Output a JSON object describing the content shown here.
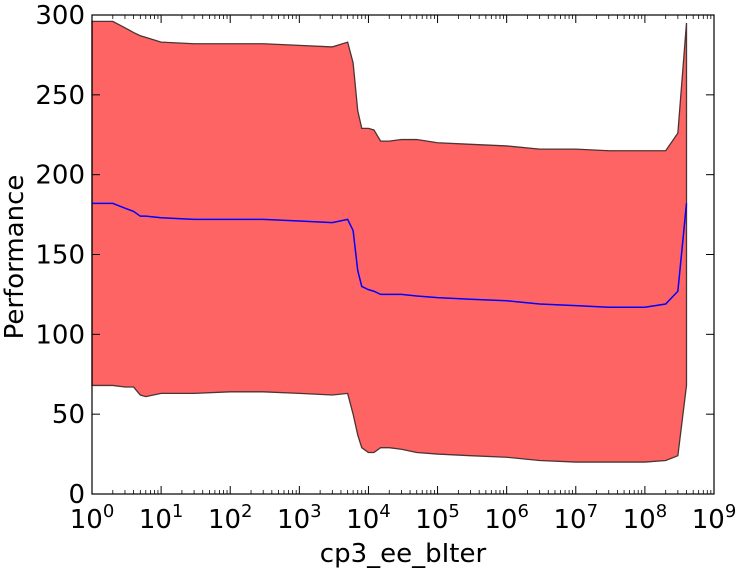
{
  "chart_data": {
    "type": "area",
    "xlabel": "cp3_ee_bIter",
    "ylabel": "Performance",
    "xscale": "log",
    "xlim": [
      1,
      1000000000
    ],
    "ylim": [
      0,
      300
    ],
    "grid": false,
    "x_ticks": [
      1,
      10,
      100,
      1000,
      10000,
      100000,
      1000000,
      10000000,
      100000000,
      1000000000
    ],
    "x_tick_labels": [
      {
        "base": "10",
        "exp": "0"
      },
      {
        "base": "10",
        "exp": "1"
      },
      {
        "base": "10",
        "exp": "2"
      },
      {
        "base": "10",
        "exp": "3"
      },
      {
        "base": "10",
        "exp": "4"
      },
      {
        "base": "10",
        "exp": "5"
      },
      {
        "base": "10",
        "exp": "6"
      },
      {
        "base": "10",
        "exp": "7"
      },
      {
        "base": "10",
        "exp": "8"
      },
      {
        "base": "10",
        "exp": "9"
      }
    ],
    "y_ticks": [
      0,
      50,
      100,
      150,
      200,
      250,
      300
    ],
    "y_tick_labels": [
      "0",
      "50",
      "100",
      "150",
      "200",
      "250",
      "300"
    ],
    "colors": {
      "band_fill": "#ff6464",
      "band_edge": "#4d3333",
      "mean_line": "#0000ff"
    },
    "series": [
      {
        "role": "band",
        "x": [
          1,
          2,
          3,
          4,
          5,
          6,
          10,
          30,
          100,
          300,
          1000,
          3000,
          5000,
          6000,
          7000,
          8000,
          10000,
          12000,
          15000,
          20000,
          30000,
          50000,
          100000,
          300000,
          1000000,
          3000000,
          10000000,
          30000000,
          100000000,
          200000000,
          300000000,
          400000000
        ],
        "upper": [
          296,
          296,
          292,
          289,
          287,
          286,
          283,
          282,
          282,
          282,
          281,
          280,
          283,
          270,
          240,
          229,
          229,
          228,
          221,
          221,
          222,
          222,
          220,
          219,
          218,
          216,
          216,
          215,
          215,
          215,
          226,
          295
        ],
        "lower": [
          68,
          68,
          67,
          67,
          62,
          61,
          63,
          63,
          64,
          64,
          63,
          62,
          63,
          50,
          37,
          29,
          26,
          26,
          29,
          29,
          28,
          26,
          25,
          24,
          23,
          21,
          20,
          20,
          20,
          21,
          24,
          68
        ]
      },
      {
        "role": "mean",
        "x": [
          1,
          2,
          3,
          4,
          5,
          6,
          10,
          30,
          100,
          300,
          1000,
          3000,
          5000,
          6000,
          7000,
          8000,
          10000,
          12000,
          15000,
          20000,
          30000,
          50000,
          100000,
          300000,
          1000000,
          3000000,
          10000000,
          30000000,
          100000000,
          200000000,
          300000000,
          400000000
        ],
        "values": [
          182,
          182,
          179,
          177,
          174,
          174,
          173,
          172,
          172,
          172,
          171,
          170,
          172,
          165,
          140,
          130,
          128,
          127,
          125,
          125,
          125,
          124,
          123,
          122,
          121,
          119,
          118,
          117,
          117,
          119,
          127,
          182
        ]
      }
    ]
  }
}
